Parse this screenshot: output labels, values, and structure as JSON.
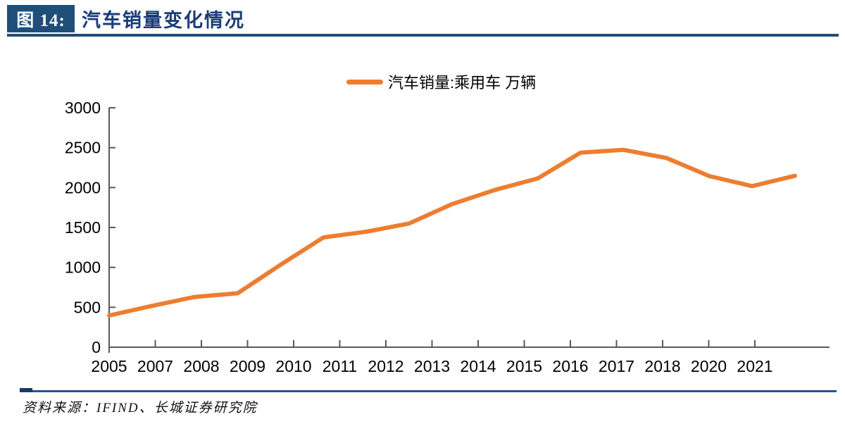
{
  "header": {
    "tag": "图 14:",
    "title": "汽车销量变化情况"
  },
  "legend": {
    "label": "汽车销量:乘用车 万辆"
  },
  "footer": {
    "source": "资料来源：IFIND、长城证券研究院"
  },
  "colors": {
    "navy": "#1F4E79",
    "line_orange": "#ED7D31",
    "axis_gray": "#595959"
  },
  "chart_data": {
    "type": "line",
    "title": "汽车销量变化情况",
    "legend": [
      "汽车销量:乘用车 万辆"
    ],
    "legend_position": "top-center",
    "grid": false,
    "xlabel": "",
    "ylabel": "",
    "ylim": [
      0,
      3000
    ],
    "y_ticks": [
      0,
      500,
      1000,
      1500,
      2000,
      2500,
      3000
    ],
    "x_tick_labels": [
      "2005",
      "2007",
      "2008",
      "2009",
      "2010",
      "2011",
      "2012",
      "2013",
      "2014",
      "2015",
      "2016",
      "2017",
      "2018",
      "2020",
      "2021"
    ],
    "series": [
      {
        "name": "汽车销量:乘用车 万辆",
        "color": "#ED7D31",
        "x": [
          2005,
          2006,
          2007,
          2008,
          2009,
          2010,
          2011,
          2012,
          2013,
          2014,
          2015,
          2016,
          2017,
          2018,
          2019,
          2020,
          2021
        ],
        "values": [
          397,
          518,
          630,
          676,
          1033,
          1376,
          1447,
          1550,
          1793,
          1970,
          2115,
          2438,
          2472,
          2371,
          2144,
          2018,
          2148
        ]
      }
    ]
  }
}
